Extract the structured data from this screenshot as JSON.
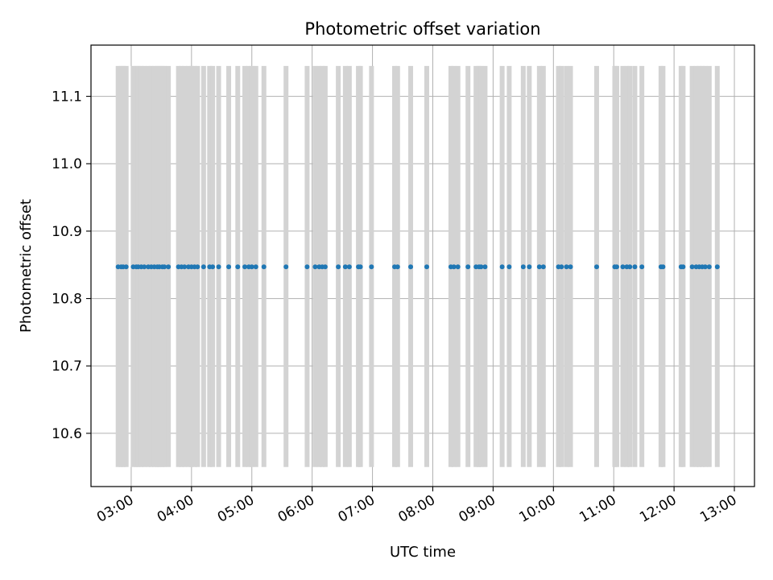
{
  "chart_data": {
    "type": "scatter",
    "title": "Photometric offset variation",
    "xlabel": "UTC time",
    "ylabel": "Photometric offset",
    "x_unit": "UTC hour",
    "xlim": [
      "02:20",
      "13:20"
    ],
    "ylim": [
      10.521,
      11.176
    ],
    "x_ticks": [
      "03:00",
      "04:00",
      "05:00",
      "06:00",
      "07:00",
      "08:00",
      "09:00",
      "10:00",
      "11:00",
      "12:00",
      "13:00"
    ],
    "y_ticks": [
      10.6,
      10.7,
      10.8,
      10.9,
      11.0,
      11.1
    ],
    "grid": true,
    "marker_color": "#1f77b4",
    "errorbar_color": "#d3d3d3",
    "errorbar_range": [
      10.55,
      11.145
    ],
    "series": [
      {
        "offset": 10.847,
        "times": [
          "02:47",
          "02:50",
          "02:52",
          "02:55",
          "03:02",
          "03:05",
          "03:07",
          "03:10",
          "03:13",
          "03:17",
          "03:20",
          "03:23",
          "03:26",
          "03:28",
          "03:31",
          "03:33",
          "03:37",
          "03:47",
          "03:50",
          "03:53",
          "03:57",
          "04:00",
          "04:03",
          "04:06",
          "04:12",
          "04:18",
          "04:21",
          "04:27",
          "04:37",
          "04:46",
          "04:53",
          "04:57",
          "05:00",
          "05:04",
          "05:12",
          "05:34",
          "05:55",
          "06:03",
          "06:07",
          "06:10",
          "06:13",
          "06:26",
          "06:33",
          "06:37",
          "06:46",
          "06:48",
          "06:59",
          "07:22",
          "07:25",
          "07:38",
          "07:54",
          "08:18",
          "08:21",
          "08:25",
          "08:35",
          "08:43",
          "08:46",
          "08:48",
          "08:52",
          "09:09",
          "09:16",
          "09:30",
          "09:36",
          "09:46",
          "09:50",
          "10:05",
          "10:08",
          "10:13",
          "10:17",
          "10:43",
          "11:01",
          "11:03",
          "11:09",
          "11:13",
          "11:16",
          "11:21",
          "11:28",
          "11:47",
          "11:49",
          "12:07",
          "12:09",
          "12:18",
          "12:22",
          "12:25",
          "12:28",
          "12:31",
          "12:35",
          "12:43"
        ]
      }
    ]
  }
}
